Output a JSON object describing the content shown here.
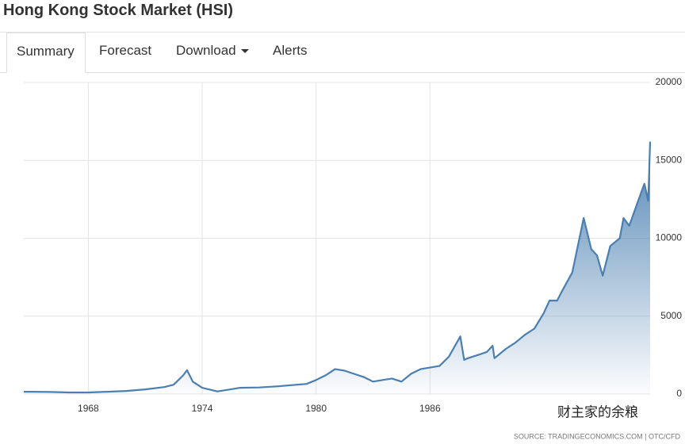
{
  "header": {
    "title": "Hong Kong Stock Market (HSI)"
  },
  "tabs": [
    "Summary",
    "Forecast",
    "Download",
    "Alerts"
  ],
  "chart_data": {
    "type": "area",
    "color": "#4a7fb0",
    "x": [
      1964.6,
      1965,
      1966,
      1967,
      1968,
      1969,
      1970,
      1971,
      1972,
      1972.5,
      1973,
      1973.2,
      1973.5,
      1974,
      1974.8,
      1975.5,
      1976,
      1977,
      1978,
      1979,
      1979.5,
      1980,
      1980.5,
      1981,
      1981.5,
      1982,
      1982.5,
      1983,
      1983.5,
      1984,
      1984.5,
      1985,
      1985.5,
      1986,
      1986.5,
      1987,
      1987.6,
      1987.8,
      1988,
      1988.5,
      1989,
      1989.3,
      1989.4,
      1990,
      1990.5,
      1991,
      1991.5,
      1992,
      1992.3,
      1992.7,
      1993,
      1993.5,
      1994.1,
      1994.5,
      1994.8,
      1995.1,
      1995.5,
      1996,
      1996.2,
      1996.5,
      1997,
      1997.3,
      1997.5,
      1997.6
    ],
    "series": [
      {
        "name": "HSI",
        "color": "#4a7fb0",
        "values": [
          150,
          150,
          130,
          100,
          100,
          150,
          200,
          300,
          450,
          600,
          1200,
          1530,
          800,
          400,
          170,
          300,
          400,
          420,
          500,
          600,
          650,
          900,
          1200,
          1600,
          1500,
          1300,
          1100,
          800,
          900,
          1000,
          800,
          1300,
          1600,
          1700,
          1800,
          2400,
          3700,
          2200,
          2300,
          2500,
          2700,
          3100,
          2300,
          2900,
          3300,
          3800,
          4200,
          5200,
          6000,
          6000,
          6700,
          7800,
          11300,
          9300,
          8900,
          7600,
          9500,
          10000,
          11300,
          10800,
          12500,
          13500,
          12400,
          16200
        ]
      }
    ],
    "xlim": [
      1964.6,
      1997.6
    ],
    "xticks": [
      1968,
      1974,
      1980,
      1986
    ],
    "ylim": [
      0,
      20000
    ],
    "yticks": [
      0,
      5000,
      10000,
      15000,
      20000
    ],
    "grid": true,
    "source": "SOURCE: TRADINGECONOMICS.COM  |  OTC/CFD",
    "watermark": "财主家的余粮"
  }
}
